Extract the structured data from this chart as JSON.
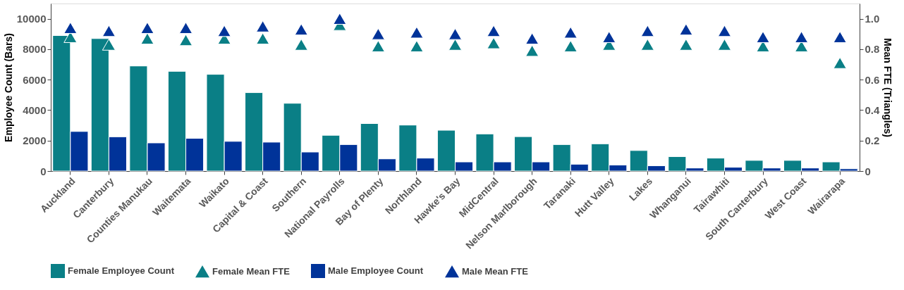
{
  "chart_data": {
    "type": "bar",
    "categories": [
      "Auckland",
      "Canterbury",
      "Counties Manukau",
      "Waitemata",
      "Waikato",
      "Capital & Coast",
      "Southern",
      "National Payrolls",
      "Bay of Plenty",
      "Northland",
      "Hawke's Bay",
      "MidCentral",
      "Nelson Marlborough",
      "Taranaki",
      "Hutt Valley",
      "Lakes",
      "Whanganui",
      "Tairawhiti",
      "South Canterbury",
      "West Coast",
      "Wairarapa"
    ],
    "series": [
      {
        "name": "Female Employee Count",
        "color": "#0a7f86",
        "values": [
          8900,
          8700,
          6900,
          6550,
          6350,
          5150,
          4450,
          2350,
          3120,
          3020,
          2680,
          2440,
          2260,
          1740,
          1790,
          1350,
          950,
          850,
          700,
          700,
          600
        ]
      },
      {
        "name": "Female Mean FTE",
        "type": "scatter",
        "axis": "y2",
        "marker": "triangle",
        "color": "#0a7f86",
        "values": [
          0.88,
          0.83,
          0.87,
          0.86,
          0.87,
          0.87,
          0.83,
          0.96,
          0.82,
          0.82,
          0.83,
          0.84,
          0.79,
          0.82,
          0.83,
          0.83,
          0.83,
          0.83,
          0.82,
          0.82,
          0.71
        ]
      },
      {
        "name": "Male Employee Count",
        "color": "#003399",
        "values": [
          2600,
          2250,
          1850,
          2150,
          1950,
          1900,
          1250,
          1740,
          800,
          850,
          600,
          600,
          600,
          450,
          400,
          350,
          200,
          250,
          200,
          200,
          150
        ]
      },
      {
        "name": "Male Mean FTE",
        "type": "scatter",
        "axis": "y2",
        "marker": "triangle",
        "color": "#003399",
        "values": [
          0.94,
          0.92,
          0.94,
          0.94,
          0.92,
          0.95,
          0.93,
          1.0,
          0.9,
          0.91,
          0.9,
          0.92,
          0.87,
          0.91,
          0.88,
          0.92,
          0.93,
          0.92,
          0.88,
          0.88,
          0.88
        ]
      }
    ],
    "ylabel": "Employee Count (Bars)",
    "y2label": "Mean FTE (Triangles)",
    "ylim": [
      0,
      11000
    ],
    "yticks": [
      0,
      2000,
      4000,
      6000,
      8000,
      10000
    ],
    "y2lim": [
      0,
      1.1
    ],
    "y2ticks": [
      {
        "value": 0,
        "label": "0"
      },
      {
        "value": 0.2,
        "label": "0.2"
      },
      {
        "value": 0.4,
        "label": "0.4"
      },
      {
        "value": 0.6,
        "label": "0.6"
      },
      {
        "value": 0.8,
        "label": "0.8"
      },
      {
        "value": 1,
        "label": "1.0"
      }
    ],
    "grid": false,
    "legend": "bottom"
  }
}
